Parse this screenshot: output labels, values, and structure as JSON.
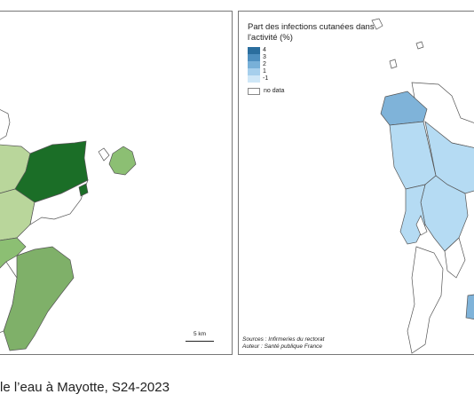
{
  "left_map": {
    "scale_label": "5 km",
    "colors": {
      "dark_green": "#1b6e27",
      "mid_green": "#7fb069",
      "light_green": "#b9d69b",
      "island_green": "#8cbf73"
    }
  },
  "right_map": {
    "legend": {
      "title": "Part des infections cutanées dans l'activité (%)",
      "classes": [
        {
          "label": "4",
          "color": "#2b6e9e"
        },
        {
          "label": "3",
          "color": "#4e8fbf"
        },
        {
          "label": "2",
          "color": "#78b0d8"
        },
        {
          "label": "1",
          "color": "#a6cfec"
        },
        {
          "label": "-1",
          "color": "#cfe7f7"
        }
      ],
      "no_data_label": "no data"
    },
    "sources": "Sources : Infirmeries du rectorat",
    "author": "Auteur : Santé publique France",
    "colors": {
      "region_light": "#b5dbf3",
      "region_mid": "#7fb3d9"
    }
  },
  "caption": "le l’eau à Mayotte, S24-2023"
}
